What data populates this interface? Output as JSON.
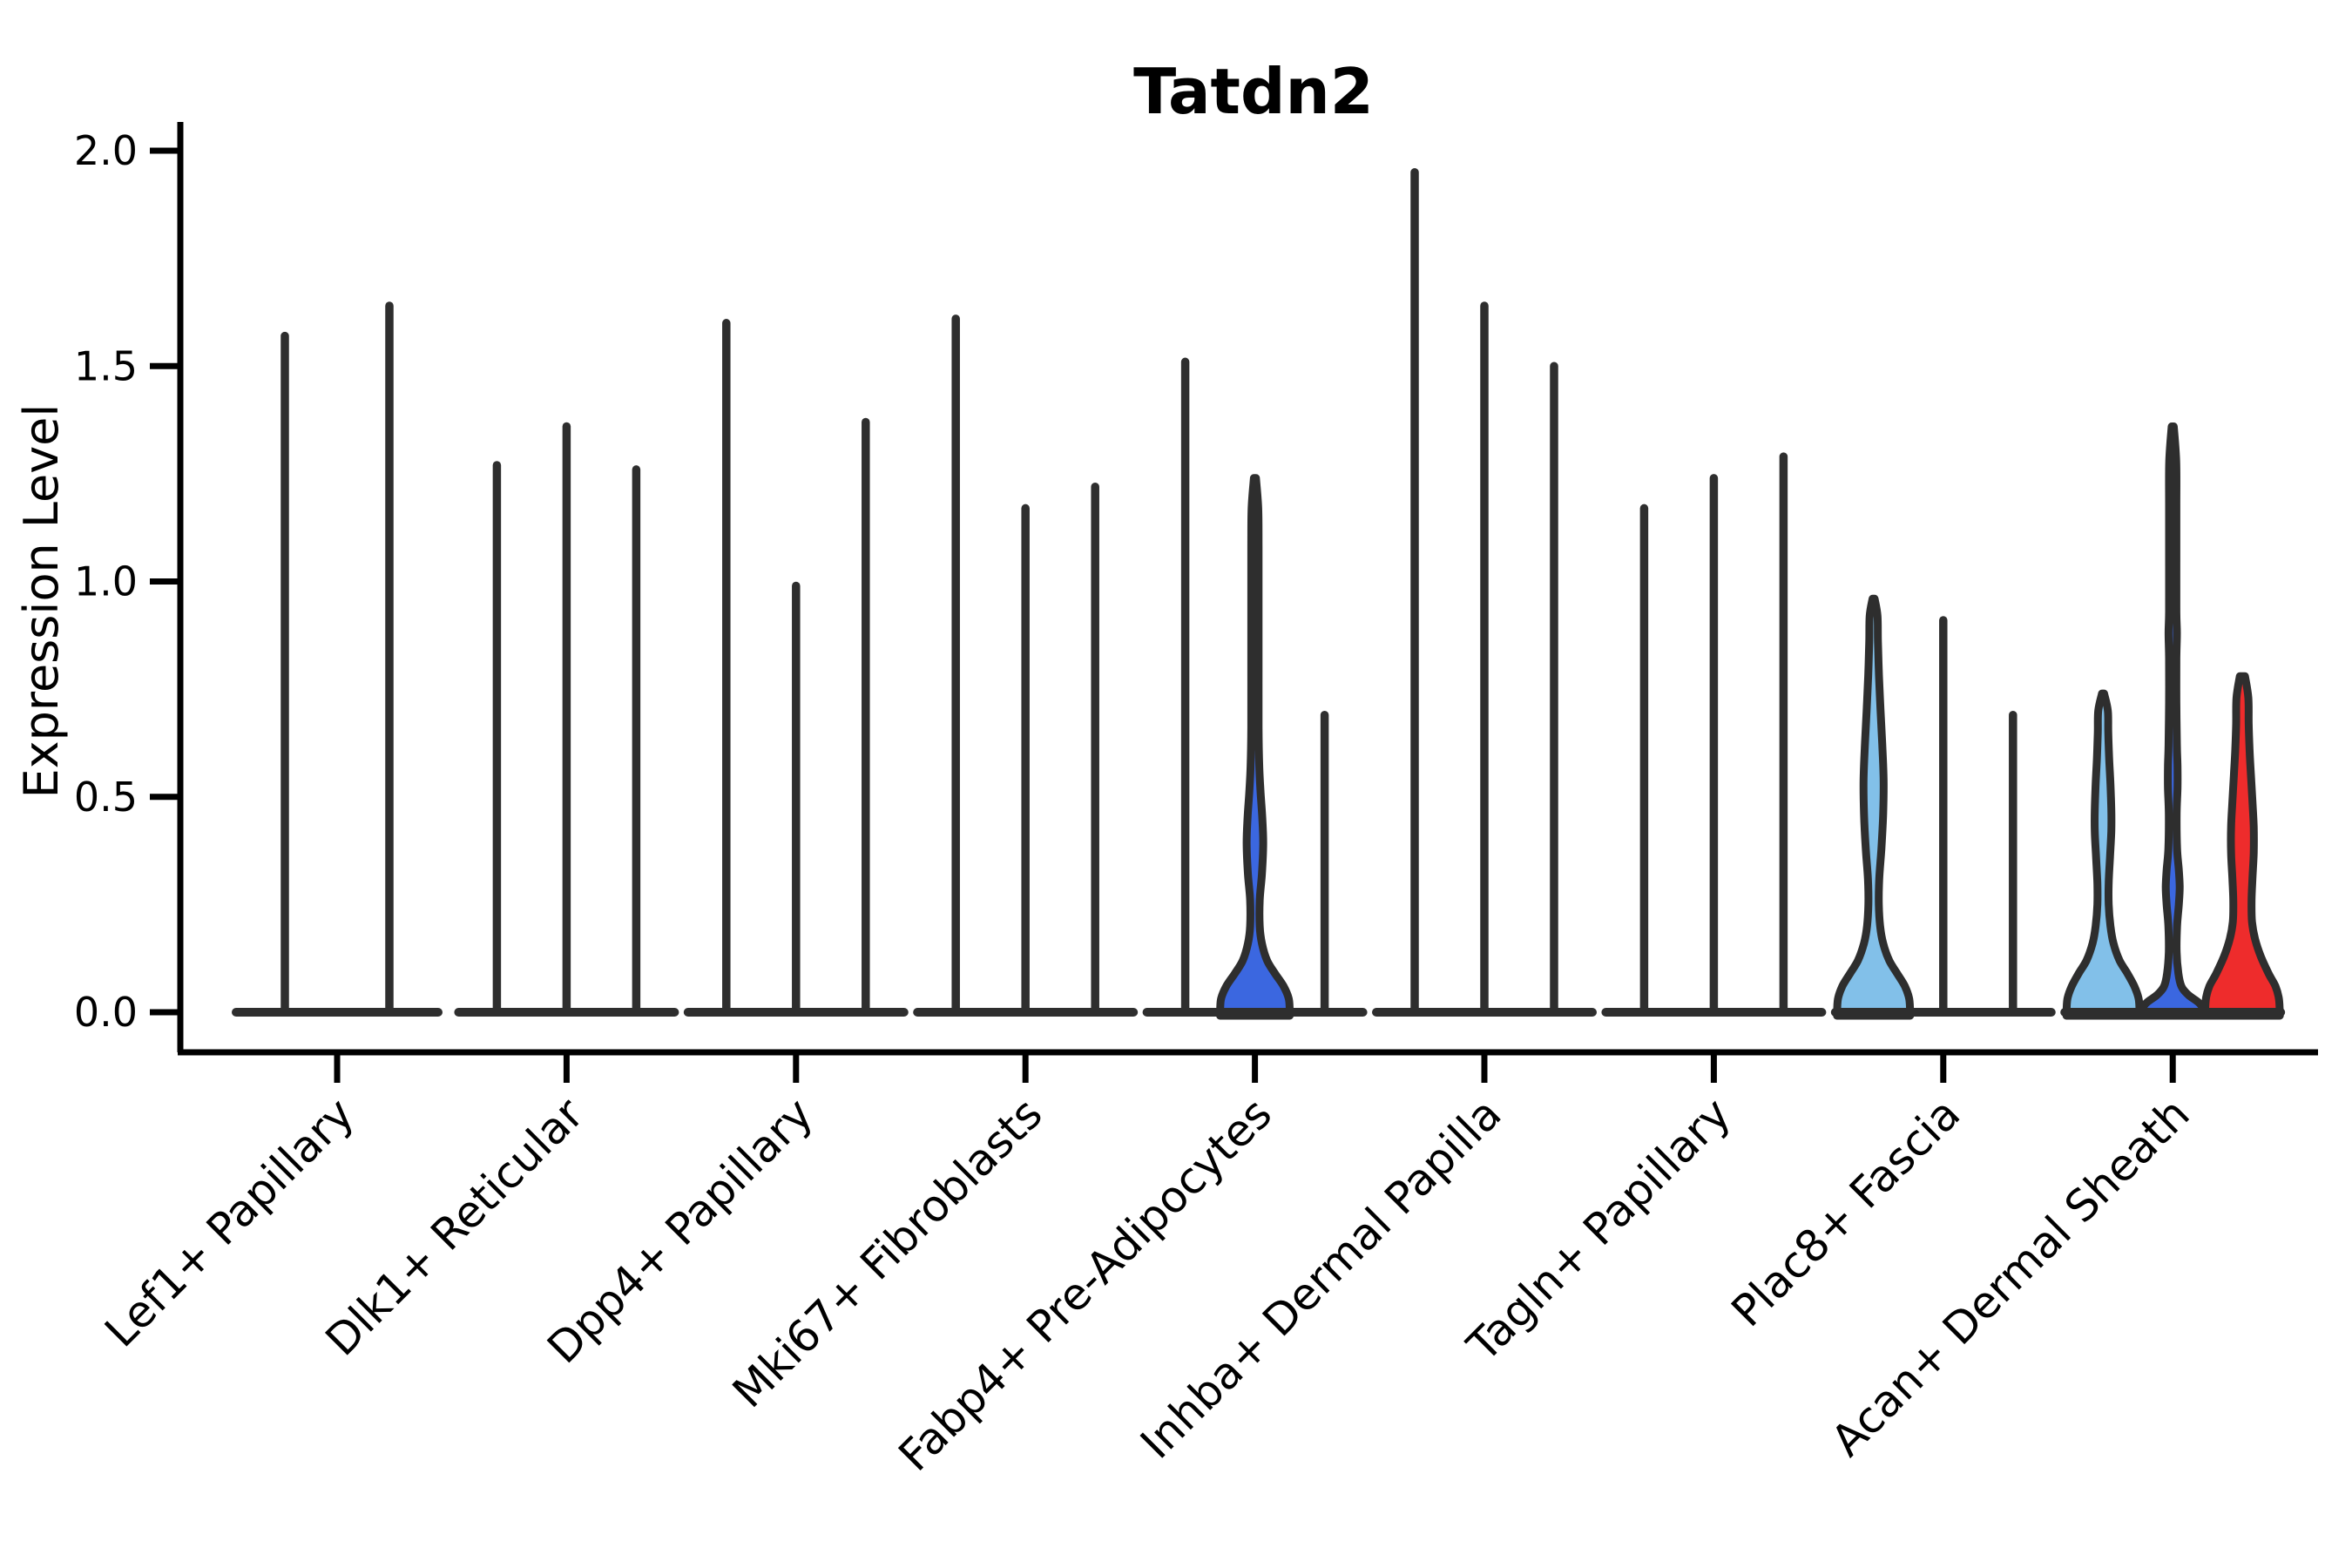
{
  "title": "Tatdn2",
  "ylabel": "Expression Level",
  "chart_data": {
    "type": "violin",
    "title": "Tatdn2",
    "xlabel": "",
    "ylabel": "Expression Level",
    "ylim": [
      -0.09,
      2.06
    ],
    "yticks": [
      2.0,
      1.5,
      1.0,
      0.5,
      0.0
    ],
    "ytick_labels": [
      "2.0",
      "1.5",
      "1.0",
      "0.5",
      "0.0"
    ],
    "xtick_label_rotation_deg": 45,
    "grid": false,
    "legend": null,
    "categories": [
      "Lef1+ Papillary",
      "Dlk1+ Reticular",
      "Dpp4+ Papillary",
      "Mki67+ Fibroblasts",
      "Fabp4+ Pre-Adipocytes",
      "Inhba+ Dermal Papilla",
      "Tagln+ Papillary",
      "Plac8+ Fascia",
      "Acan+ Dermal Sheath"
    ],
    "colors": {
      "spike_stroke": "#2E2E2E",
      "axis": "#000000",
      "light_blue": "#82C0E9",
      "royal_blue": "#3B67E0",
      "red": "#EE2C2C",
      "background": "#FFFFFF"
    },
    "groups": [
      {
        "category": "Lef1+ Papillary",
        "violins": [
          {
            "kind": "spike",
            "max": 1.57
          },
          {
            "kind": "spike",
            "max": 1.64
          }
        ]
      },
      {
        "category": "Dlk1+ Reticular",
        "violins": [
          {
            "kind": "spike",
            "max": 1.27
          },
          {
            "kind": "spike",
            "max": 1.36
          },
          {
            "kind": "spike",
            "max": 1.26
          }
        ]
      },
      {
        "category": "Dpp4+ Papillary",
        "violins": [
          {
            "kind": "spike",
            "max": 1.6
          },
          {
            "kind": "spike",
            "max": 0.99
          },
          {
            "kind": "spike",
            "max": 1.37
          }
        ]
      },
      {
        "category": "Mki67+ Fibroblasts",
        "violins": [
          {
            "kind": "spike",
            "max": 1.61
          },
          {
            "kind": "spike",
            "max": 1.17
          },
          {
            "kind": "spike",
            "max": 1.22
          }
        ]
      },
      {
        "category": "Fabp4+ Pre-Adipocytes",
        "violins": [
          {
            "kind": "spike",
            "max": 1.51
          },
          {
            "kind": "shaped",
            "max": 1.24,
            "fill": "#3B67E0",
            "profile": [
              [
                0,
                40
              ],
              [
                0.03,
                39
              ],
              [
                0.06,
                33
              ],
              [
                0.09,
                23
              ],
              [
                0.12,
                14
              ],
              [
                0.16,
                8
              ],
              [
                0.2,
                5.5
              ],
              [
                0.26,
                5.5
              ],
              [
                0.32,
                8
              ],
              [
                0.39,
                9.5
              ],
              [
                0.45,
                8.5
              ],
              [
                0.51,
                6.5
              ],
              [
                0.57,
                5
              ],
              [
                0.66,
                4.2
              ],
              [
                0.8,
                4.2
              ],
              [
                0.95,
                4.2
              ],
              [
                1.08,
                4.2
              ],
              [
                1.17,
                3.8
              ],
              [
                1.24,
                1.2
              ]
            ]
          },
          {
            "kind": "spike",
            "max": 0.69
          }
        ]
      },
      {
        "category": "Inhba+ Dermal Papilla",
        "violins": [
          {
            "kind": "spike",
            "max": 1.95
          },
          {
            "kind": "spike",
            "max": 1.64
          },
          {
            "kind": "spike",
            "max": 1.5
          }
        ]
      },
      {
        "category": "Tagln+ Papillary",
        "violins": [
          {
            "kind": "spike",
            "max": 1.17
          },
          {
            "kind": "spike",
            "max": 1.24
          },
          {
            "kind": "spike",
            "max": 1.29
          }
        ]
      },
      {
        "category": "Plac8+ Fascia",
        "violins": [
          {
            "kind": "shaped",
            "max": 0.96,
            "fill": "#82C0E9",
            "profile": [
              [
                0,
                42
              ],
              [
                0.03,
                41
              ],
              [
                0.06,
                36
              ],
              [
                0.09,
                27
              ],
              [
                0.12,
                18
              ],
              [
                0.16,
                11
              ],
              [
                0.2,
                7.5
              ],
              [
                0.25,
                6
              ],
              [
                0.31,
                6.5
              ],
              [
                0.38,
                9
              ],
              [
                0.46,
                11
              ],
              [
                0.54,
                11.5
              ],
              [
                0.62,
                10
              ],
              [
                0.7,
                8
              ],
              [
                0.78,
                6.2
              ],
              [
                0.86,
                5
              ],
              [
                0.92,
                4.5
              ],
              [
                0.96,
                1.2
              ]
            ]
          },
          {
            "kind": "spike",
            "max": 0.91
          },
          {
            "kind": "spike",
            "max": 0.69
          }
        ]
      },
      {
        "category": "Acan+ Dermal Sheath",
        "violins": [
          {
            "kind": "shaped",
            "max": 0.74,
            "fill": "#82C0E9",
            "profile": [
              [
                0,
                42
              ],
              [
                0.03,
                41
              ],
              [
                0.06,
                36
              ],
              [
                0.09,
                28
              ],
              [
                0.12,
                19
              ],
              [
                0.16,
                12
              ],
              [
                0.2,
                8.5
              ],
              [
                0.25,
                6.5
              ],
              [
                0.3,
                6.5
              ],
              [
                0.36,
                8
              ],
              [
                0.42,
                9.5
              ],
              [
                0.47,
                9.5
              ],
              [
                0.53,
                8.5
              ],
              [
                0.59,
                7
              ],
              [
                0.65,
                6
              ],
              [
                0.7,
                5.5
              ],
              [
                0.74,
                1.2
              ]
            ]
          },
          {
            "kind": "shaped",
            "max": 1.36,
            "fill": "#3B67E0",
            "profile": [
              [
                0,
                40
              ],
              [
                0.02,
                31
              ],
              [
                0.04,
                18
              ],
              [
                0.06,
                10
              ],
              [
                0.09,
                6.5
              ],
              [
                0.14,
                4.5
              ],
              [
                0.2,
                5
              ],
              [
                0.25,
                7
              ],
              [
                0.29,
                8
              ],
              [
                0.33,
                7
              ],
              [
                0.38,
                5
              ],
              [
                0.46,
                4.5
              ],
              [
                0.52,
                5.5
              ],
              [
                0.57,
                5.5
              ],
              [
                0.62,
                4.8
              ],
              [
                0.72,
                4.2
              ],
              [
                0.82,
                4.2
              ],
              [
                0.88,
                4.8
              ],
              [
                0.93,
                4.2
              ],
              [
                1.05,
                4.2
              ],
              [
                1.18,
                4.2
              ],
              [
                1.28,
                4
              ],
              [
                1.36,
                1.2
              ]
            ]
          },
          {
            "kind": "shaped",
            "max": 0.78,
            "fill": "#EE2C2C",
            "profile": [
              [
                0,
                43
              ],
              [
                0.03,
                42
              ],
              [
                0.06,
                38
              ],
              [
                0.09,
                30
              ],
              [
                0.13,
                21
              ],
              [
                0.17,
                14.5
              ],
              [
                0.21,
                11
              ],
              [
                0.26,
                10.5
              ],
              [
                0.31,
                11.5
              ],
              [
                0.37,
                13
              ],
              [
                0.43,
                13
              ],
              [
                0.49,
                11.5
              ],
              [
                0.55,
                9.8
              ],
              [
                0.61,
                8.2
              ],
              [
                0.67,
                7.2
              ],
              [
                0.73,
                6.8
              ],
              [
                0.78,
                3
              ]
            ]
          }
        ]
      }
    ]
  }
}
